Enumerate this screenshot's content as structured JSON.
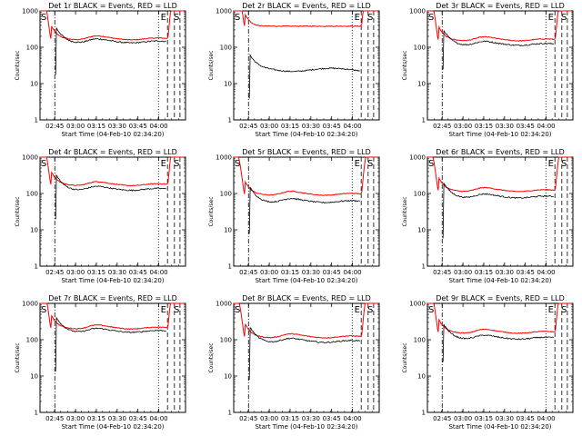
{
  "chart_data": {
    "type": "line",
    "layout": "3x3 grid",
    "y_scale": "log",
    "ylim": [
      1,
      1000
    ],
    "yticks": [
      1,
      10,
      100,
      1000
    ],
    "ylabel": "Counts/sec",
    "xlabel": "Start Time (04-Feb-10 02:34:20)",
    "xlim_minutes_after_start": [
      0,
      105
    ],
    "xticks": [
      {
        "label": "02:45",
        "t": 10.67
      },
      {
        "label": "03:00",
        "t": 25.67
      },
      {
        "label": "03:15",
        "t": 40.67
      },
      {
        "label": "03:30",
        "t": 55.67
      },
      {
        "label": "03:45",
        "t": 70.67
      },
      {
        "label": "04:00",
        "t": 85.67
      }
    ],
    "series_legend": [
      {
        "name": "Events",
        "color": "#000000"
      },
      {
        "name": "LLD",
        "color": "#ff0000"
      }
    ],
    "markers": {
      "start_label": "S",
      "end_label": "E"
    },
    "panels": [
      {
        "title": "Det 1r BLACK = Events, RED = LLD",
        "events_level": 140,
        "lld_level": 170,
        "events_start_dip": 18
      },
      {
        "title": "Det 2r BLACK = Events, RED = LLD",
        "events_level": 24,
        "lld_level": 380,
        "events_start_dip": 4
      },
      {
        "title": "Det 3r BLACK = Events, RED = LLD",
        "events_level": 120,
        "lld_level": 160,
        "events_start_dip": 25
      },
      {
        "title": "Det 4r BLACK = Events, RED = LLD",
        "events_level": 130,
        "lld_level": 175,
        "events_start_dip": 20
      },
      {
        "title": "Det 5r BLACK = Events, RED = LLD",
        "events_level": 60,
        "lld_level": 95,
        "events_start_dip": 8
      },
      {
        "title": "Det 6r BLACK = Events, RED = LLD",
        "events_level": 80,
        "lld_level": 120,
        "events_start_dip": 6
      },
      {
        "title": "Det 7r BLACK = Events, RED = LLD",
        "events_level": 170,
        "lld_level": 210,
        "events_start_dip": 14
      },
      {
        "title": "Det 8r BLACK = Events, RED = LLD",
        "events_level": 90,
        "lld_level": 120,
        "events_start_dip": 8
      },
      {
        "title": "Det 9r BLACK = Events, RED = LLD",
        "events_level": 110,
        "lld_level": 160,
        "events_start_dip": 25
      }
    ]
  }
}
